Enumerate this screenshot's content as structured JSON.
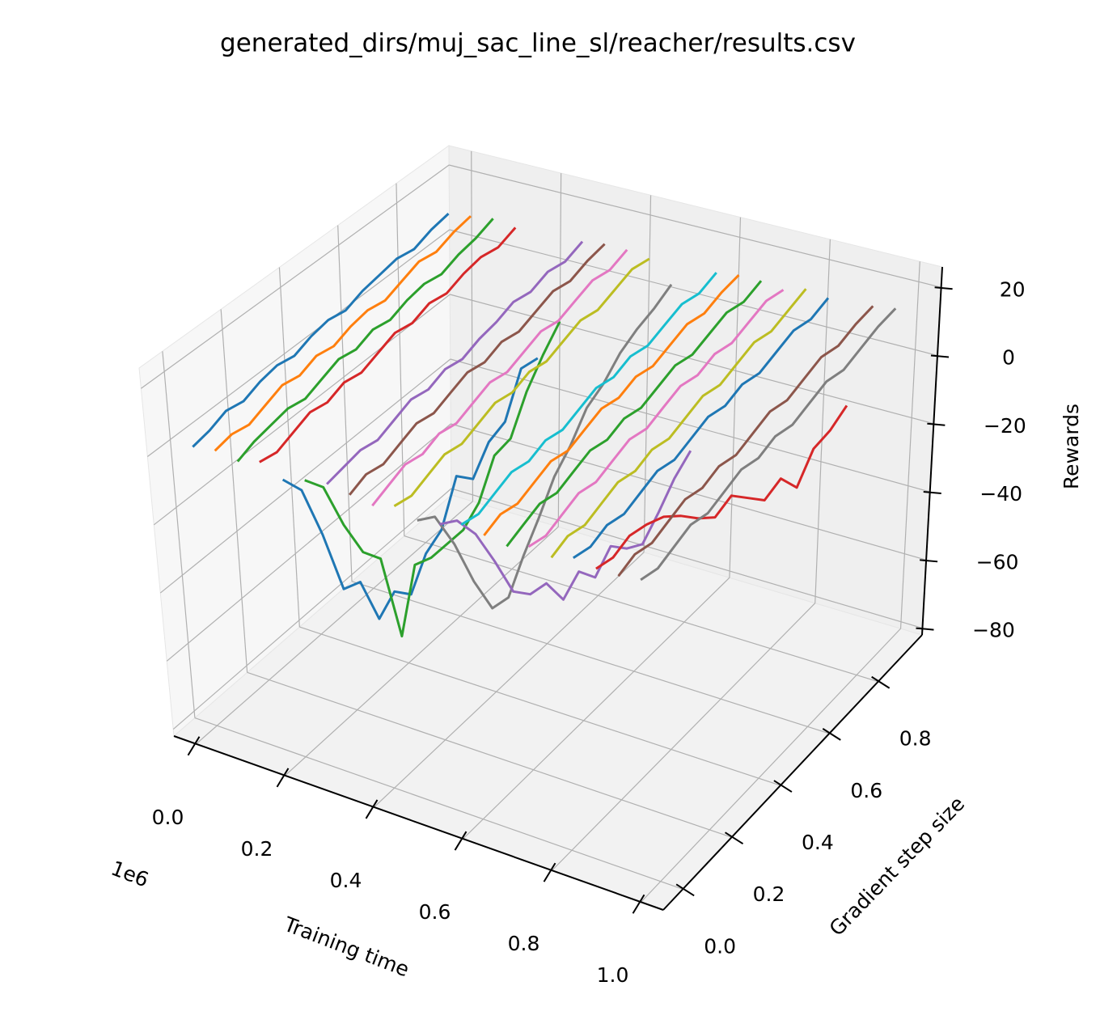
{
  "chart_data": {
    "type": "line3d",
    "title": "generated_dirs/muj_sac_line_sl/reacher/results.csv",
    "xlabel": "Training time",
    "ylabel": "Gradient step size",
    "zlabel": "Rewards",
    "x_offset_label": "1e6",
    "xlim": [
      -0.05,
      1.05
    ],
    "ylim": [
      -0.08,
      0.98
    ],
    "zlim": [
      -82,
      26
    ],
    "xticks": [
      {
        "value": 0,
        "label": "0.0"
      },
      {
        "value": 0.2,
        "label": "0.2"
      },
      {
        "value": 0.4,
        "label": "0.4"
      },
      {
        "value": 0.6,
        "label": "0.6"
      },
      {
        "value": 0.8,
        "label": "0.8"
      },
      {
        "value": 1,
        "label": "1.0"
      }
    ],
    "yticks": [
      {
        "value": 0,
        "label": "0.0"
      },
      {
        "value": 0.2,
        "label": "0.2"
      },
      {
        "value": 0.4,
        "label": "0.4"
      },
      {
        "value": 0.6,
        "label": "0.6"
      },
      {
        "value": 0.8,
        "label": "0.8"
      }
    ],
    "zticks": [
      {
        "value": -80,
        "label": "−80"
      },
      {
        "value": -60,
        "label": "−60"
      },
      {
        "value": -40,
        "label": "−40"
      },
      {
        "value": -20,
        "label": "−20"
      },
      0,
      20
    ],
    "grid": true,
    "y": [
      0,
      0.06,
      0.12,
      0.18,
      0.24,
      0.3,
      0.36,
      0.42,
      0.48,
      0.54,
      0.6,
      0.66,
      0.72,
      0.78,
      0.84,
      0.9
    ],
    "series": [
      {
        "x": 0,
        "color": "#1f77b4",
        "values": [
          0,
          1,
          3,
          2,
          4,
          5,
          4,
          6,
          7,
          6,
          8,
          9,
          10,
          9,
          11,
          12
        ]
      },
      {
        "x": 0.05,
        "color": "#ff7f0e",
        "values": [
          1,
          2,
          1,
          3,
          5,
          4,
          6,
          5,
          7,
          8,
          7,
          9,
          11,
          10,
          12,
          13
        ]
      },
      {
        "x": 0.1,
        "color": "#2ca02c",
        "values": [
          0,
          2,
          3,
          4,
          3,
          5,
          7,
          6,
          8,
          7,
          9,
          10,
          9,
          11,
          12,
          14
        ]
      },
      {
        "x": 0.15,
        "color": "#d62728",
        "values": [
          2,
          1,
          3,
          5,
          4,
          6,
          5,
          7,
          9,
          8,
          10,
          9,
          11,
          12,
          11,
          13
        ]
      },
      {
        "x": 0.2,
        "color": "#1f77b4",
        "values": [
          -1,
          -8,
          -25,
          -45,
          -47,
          -62,
          -58,
          -63,
          -55,
          -52,
          -40,
          -45,
          -38,
          -36,
          -24,
          -25
        ]
      },
      {
        "x": 0.25,
        "color": "#2ca02c",
        "values": [
          1,
          -5,
          -20,
          -32,
          -38,
          -65,
          -48,
          -50,
          -50,
          -50,
          -46,
          -36,
          -35,
          -25,
          -18,
          -12
        ]
      },
      {
        "x": 0.3,
        "color": "#9467bd",
        "values": [
          2,
          3,
          4,
          3,
          5,
          7,
          6,
          8,
          7,
          9,
          10,
          12,
          11,
          13,
          12,
          14
        ]
      },
      {
        "x": 0.35,
        "color": "#8c564b",
        "values": [
          1,
          3,
          2,
          4,
          6,
          5,
          7,
          9,
          8,
          10,
          9,
          11,
          13,
          12,
          14,
          15
        ]
      },
      {
        "x": 0.4,
        "color": "#e377c2",
        "values": [
          0,
          2,
          4,
          3,
          5,
          4,
          6,
          8,
          7,
          9,
          11,
          10,
          12,
          14,
          13,
          15
        ]
      },
      {
        "x": 0.45,
        "color": "#bcbd22",
        "values": [
          2,
          1,
          3,
          5,
          4,
          6,
          8,
          7,
          9,
          8,
          10,
          12,
          11,
          13,
          15,
          14
        ]
      },
      {
        "x": 0.5,
        "color": "#7f7f7f",
        "values": [
          0,
          -3,
          -15,
          -30,
          -42,
          -43,
          -35,
          -28,
          -20,
          -15,
          -8,
          -5,
          0,
          3,
          5,
          8
        ]
      },
      {
        "x": 0.55,
        "color": "#9467bd",
        "values": [
          1,
          -2,
          -10,
          -22,
          -35,
          -40,
          -41,
          -50,
          -46,
          -52,
          -47,
          -52,
          -55,
          -50,
          -44,
          -40
        ]
      },
      {
        "x": 0.6,
        "color": "#17becf",
        "values": [
          3,
          2,
          4,
          6,
          5,
          7,
          6,
          8,
          10,
          9,
          11,
          10,
          12,
          14,
          13,
          15
        ]
      },
      {
        "x": 0.65,
        "color": "#ff7f0e",
        "values": [
          2,
          4,
          3,
          5,
          7,
          6,
          8,
          10,
          9,
          11,
          10,
          12,
          14,
          13,
          15,
          16
        ]
      },
      {
        "x": 0.7,
        "color": "#2ca02c",
        "values": [
          1,
          3,
          5,
          4,
          6,
          8,
          7,
          9,
          8,
          10,
          12,
          11,
          13,
          15,
          14,
          16
        ]
      },
      {
        "x": 0.75,
        "color": "#e377c2",
        "values": [
          3,
          2,
          4,
          6,
          5,
          7,
          9,
          8,
          10,
          12,
          11,
          13,
          12,
          14,
          16,
          15
        ]
      },
      {
        "x": 0.8,
        "color": "#bcbd22",
        "values": [
          2,
          4,
          3,
          5,
          7,
          6,
          8,
          7,
          9,
          11,
          10,
          12,
          14,
          13,
          15,
          17
        ]
      },
      {
        "x": 0.85,
        "color": "#1f77b4",
        "values": [
          4,
          3,
          5,
          4,
          6,
          8,
          7,
          9,
          11,
          10,
          12,
          11,
          13,
          15,
          14,
          16
        ]
      },
      {
        "x": 0.9,
        "color": "#d62728",
        "values": [
          3,
          2,
          4,
          3,
          1,
          -3,
          -8,
          -12,
          -10,
          -15,
          -20,
          -18,
          -25,
          -18,
          -17,
          -14
        ]
      },
      {
        "x": 0.95,
        "color": "#8c564b",
        "values": [
          3,
          5,
          4,
          6,
          8,
          7,
          9,
          8,
          10,
          12,
          11,
          13,
          15,
          14,
          16,
          17
        ]
      },
      {
        "x": 1,
        "color": "#7f7f7f",
        "values": [
          4,
          3,
          5,
          7,
          6,
          8,
          10,
          9,
          11,
          10,
          12,
          14,
          13,
          15,
          17,
          18
        ]
      }
    ]
  }
}
